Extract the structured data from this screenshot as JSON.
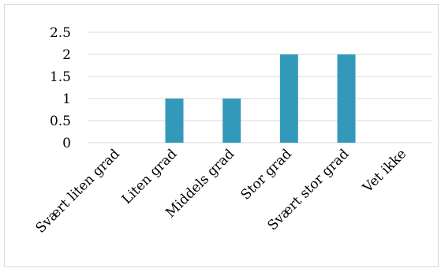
{
  "chart_data": {
    "type": "bar",
    "title": "",
    "xlabel": "",
    "ylabel": "",
    "categories": [
      "Svært liten grad",
      "Liten grad",
      "Middels grad",
      "Stor grad",
      "Svært stor grad",
      "Vet ikke"
    ],
    "values": [
      0,
      1,
      1,
      2,
      2,
      0
    ],
    "ylim": [
      0,
      2.5
    ],
    "yticks": [
      "0",
      "0.5",
      "1",
      "1.5",
      "2",
      "2.5"
    ],
    "grid": true,
    "legend": "none",
    "bar_color": "#3399bb",
    "gridline_color": "#d9d9d9"
  }
}
